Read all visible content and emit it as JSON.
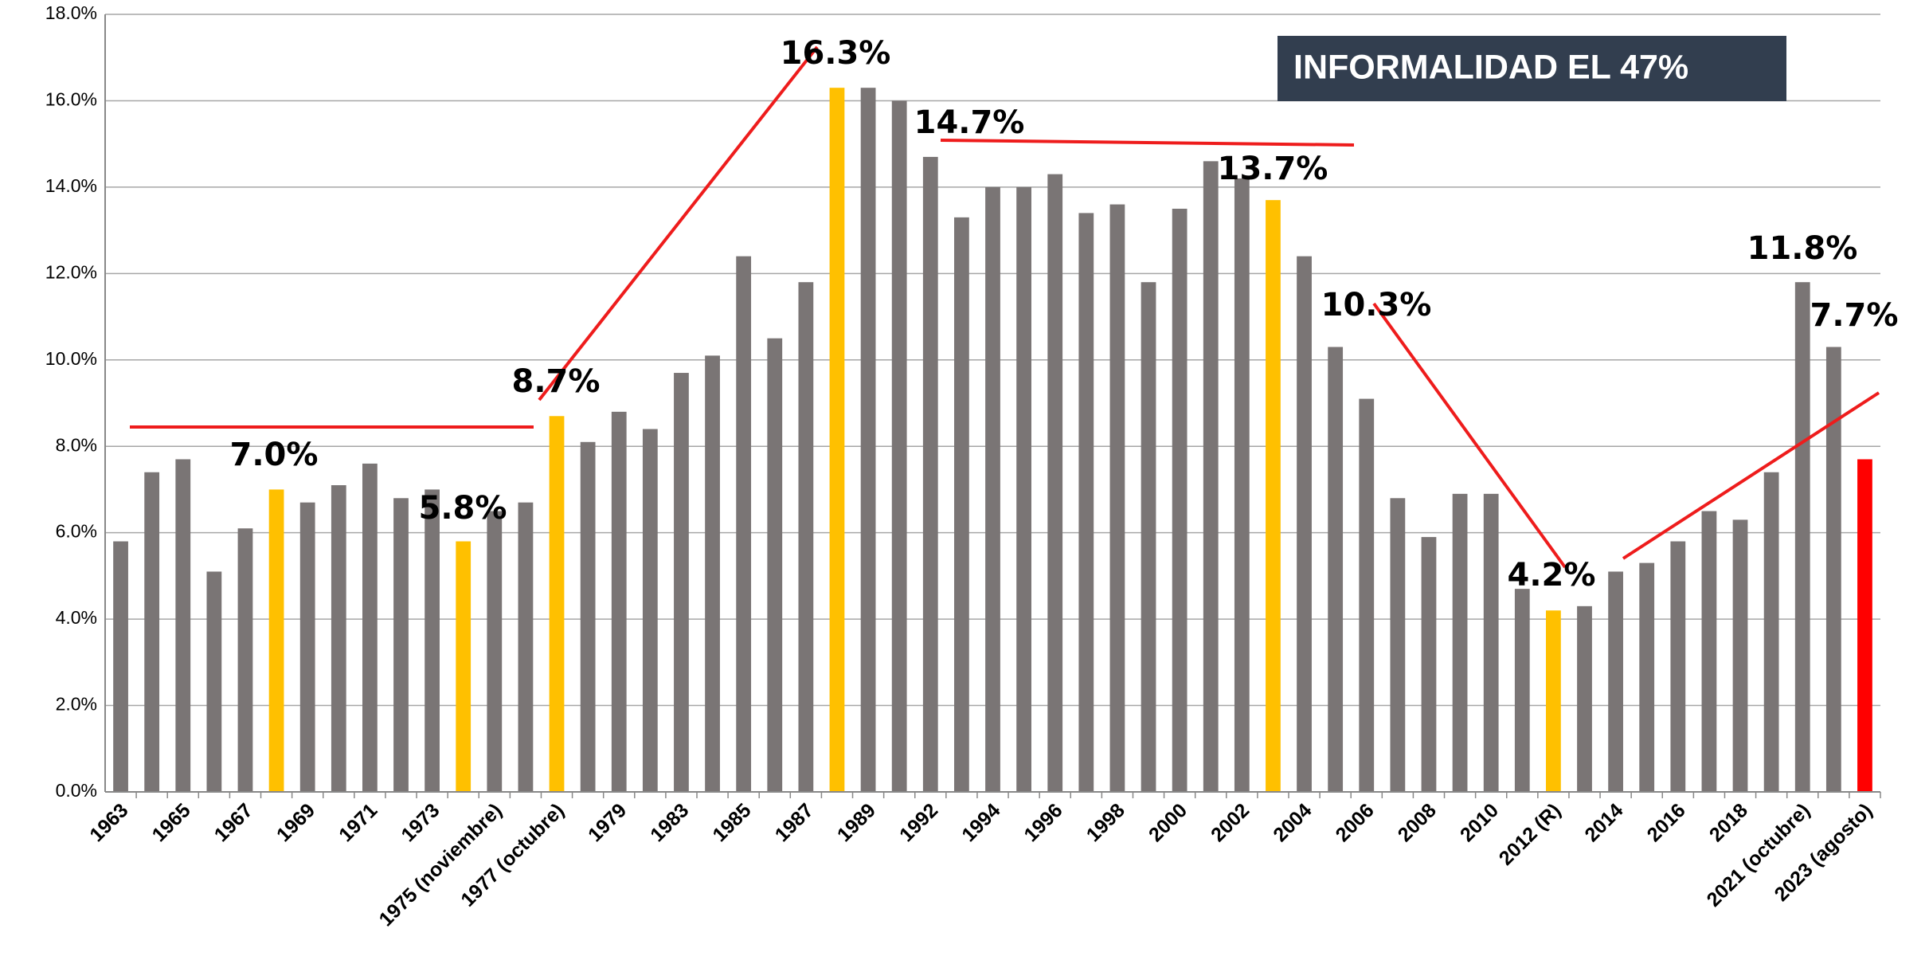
{
  "chart_data": {
    "type": "bar",
    "annotation": "INFORMALIDAD EL 47%",
    "categories": [
      "1963",
      null,
      "1965",
      null,
      "1967",
      null,
      "1969",
      null,
      "1971",
      null,
      "1973",
      null,
      "1975 (noviembre)",
      null,
      "1977 (octubre)",
      null,
      "1979",
      null,
      "1983",
      null,
      "1985",
      null,
      "1987",
      null,
      "1989",
      null,
      "1992",
      null,
      "1994",
      null,
      "1996",
      null,
      "1998",
      null,
      "2000",
      null,
      "2002",
      null,
      "2004",
      null,
      "2006",
      null,
      "2008",
      null,
      "2010",
      null,
      "2012 (R)",
      null,
      "2014",
      null,
      "2016",
      null,
      "2018",
      null,
      "2021 (octubre)",
      null,
      "2023 (agosto)"
    ],
    "values": [
      5.8,
      7.4,
      7.7,
      5.1,
      6.1,
      7.0,
      6.7,
      7.1,
      7.6,
      6.8,
      7.0,
      5.8,
      6.5,
      6.7,
      8.7,
      8.1,
      8.8,
      8.4,
      9.7,
      10.1,
      12.4,
      10.5,
      11.8,
      16.3,
      16.3,
      16.0,
      14.7,
      13.3,
      14.0,
      14.0,
      14.3,
      13.4,
      13.6,
      11.8,
      13.5,
      14.6,
      14.2,
      13.7,
      12.4,
      10.3,
      9.1,
      6.8,
      5.9,
      6.9,
      6.9,
      4.7,
      4.2,
      4.3,
      5.1,
      5.3,
      5.8,
      6.5,
      6.3,
      7.4,
      11.8,
      10.3,
      7.7
    ],
    "value_labels": [
      null,
      null,
      null,
      null,
      null,
      "7.0%",
      null,
      null,
      null,
      null,
      null,
      "5.8%",
      null,
      null,
      "8.7%",
      null,
      null,
      null,
      null,
      null,
      null,
      null,
      null,
      "16.3%",
      null,
      null,
      "14.7%",
      null,
      null,
      null,
      null,
      null,
      null,
      null,
      null,
      null,
      null,
      "13.7%",
      null,
      "10.3%",
      null,
      null,
      null,
      null,
      null,
      null,
      "4.2%",
      null,
      null,
      null,
      null,
      null,
      null,
      null,
      "11.8%",
      null,
      "7.7%"
    ],
    "colors": [
      "#7a7575",
      "#7a7575",
      "#7a7575",
      "#7a7575",
      "#7a7575",
      "#ffc000",
      "#7a7575",
      "#7a7575",
      "#7a7575",
      "#7a7575",
      "#7a7575",
      "#ffc000",
      "#7a7575",
      "#7a7575",
      "#ffc000",
      "#7a7575",
      "#7a7575",
      "#7a7575",
      "#7a7575",
      "#7a7575",
      "#7a7575",
      "#7a7575",
      "#7a7575",
      "#ffc000",
      "#7a7575",
      "#7a7575",
      "#7a7575",
      "#7a7575",
      "#7a7575",
      "#7a7575",
      "#7a7575",
      "#7a7575",
      "#7a7575",
      "#7a7575",
      "#7a7575",
      "#7a7575",
      "#7a7575",
      "#ffc000",
      "#7a7575",
      "#7a7575",
      "#7a7575",
      "#7a7575",
      "#7a7575",
      "#7a7575",
      "#7a7575",
      "#7a7575",
      "#ffc000",
      "#7a7575",
      "#7a7575",
      "#7a7575",
      "#7a7575",
      "#7a7575",
      "#7a7575",
      "#7a7575",
      "#7a7575",
      "#7a7575",
      "#ff0000"
    ],
    "ylim": [
      0,
      18
    ],
    "yticks": [
      {
        "value": 0,
        "label": "0.0%"
      },
      {
        "value": 2,
        "label": "2.0%"
      },
      {
        "value": 4,
        "label": "4.0%"
      },
      {
        "value": 6,
        "label": "6.0%"
      },
      {
        "value": 8,
        "label": "8.0%"
      },
      {
        "value": 10,
        "label": "10.0%"
      },
      {
        "value": 12,
        "label": "12.0%"
      },
      {
        "value": 14,
        "label": "14.0%"
      },
      {
        "value": 16,
        "label": "16.0%"
      },
      {
        "value": 18,
        "label": "18.0%"
      }
    ],
    "grid": true
  }
}
